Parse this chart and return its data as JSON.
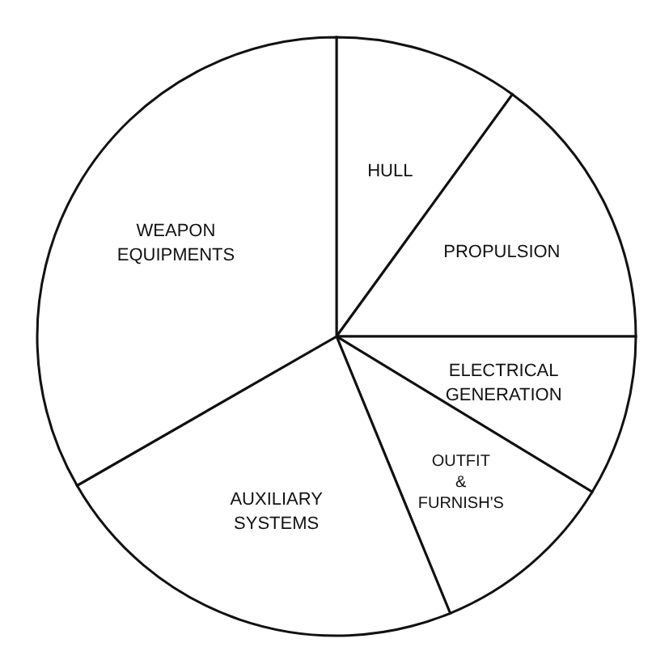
{
  "chart_data": {
    "type": "pie",
    "categories": [
      "HULL",
      "PROPULSION",
      "ELECTRICAL GENERATION",
      "OUTFIT & FURNISH'S",
      "AUXILIARY SYSTEMS",
      "WEAPON EQUIPMENTS"
    ],
    "values": [
      10,
      15,
      8.7,
      10.1,
      22.9,
      33.3
    ],
    "colors": [
      "#ffffff",
      "#ffffff",
      "#ffffff",
      "#ffffff",
      "#ffffff",
      "#ffffff"
    ]
  }
}
